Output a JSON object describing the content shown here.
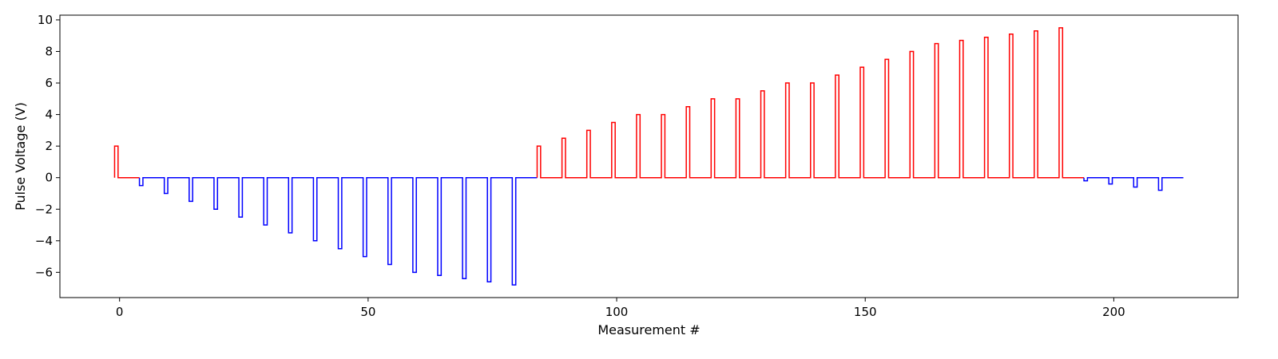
{
  "chart_data": {
    "type": "line",
    "title": "",
    "xlabel": "Measurement #",
    "ylabel": "Pulse Voltage (V)",
    "xlim": [
      -12,
      225
    ],
    "ylim": [
      -7.6,
      10.3
    ],
    "xticks": [
      0,
      50,
      100,
      150,
      200
    ],
    "yticks": [
      -6,
      -4,
      -2,
      0,
      2,
      4,
      6,
      8,
      10
    ],
    "xtick_labels": [
      "0",
      "50",
      "100",
      "150",
      "200"
    ],
    "ytick_labels": [
      "−6",
      "−4",
      "−2",
      "0",
      "2",
      "4",
      "6",
      "8",
      "10"
    ],
    "grid": false,
    "legend": "none",
    "step": true,
    "pulse_width": 0.7,
    "series": [
      {
        "color": "#ff0000",
        "segment": "first",
        "x_start": -1,
        "x_end": 4,
        "pulses": [
          {
            "x": -1,
            "v": 2.0
          }
        ]
      },
      {
        "color": "#0000ff",
        "segment": "negative",
        "x_start": 4,
        "x_end": 84,
        "pulses": [
          {
            "x": 4,
            "v": -0.5
          },
          {
            "x": 9,
            "v": -1.0
          },
          {
            "x": 14,
            "v": -1.5
          },
          {
            "x": 19,
            "v": -2.0
          },
          {
            "x": 24,
            "v": -2.5
          },
          {
            "x": 29,
            "v": -3.0
          },
          {
            "x": 34,
            "v": -3.5
          },
          {
            "x": 39,
            "v": -4.0
          },
          {
            "x": 44,
            "v": -4.5
          },
          {
            "x": 49,
            "v": -5.0
          },
          {
            "x": 54,
            "v": -5.5
          },
          {
            "x": 59,
            "v": -6.0
          },
          {
            "x": 64,
            "v": -6.2
          },
          {
            "x": 69,
            "v": -6.4
          },
          {
            "x": 74,
            "v": -6.6
          },
          {
            "x": 79,
            "v": -6.8
          }
        ]
      },
      {
        "color": "#ff0000",
        "segment": "positive",
        "x_start": 84,
        "x_end": 194,
        "pulses": [
          {
            "x": 84,
            "v": 2.0
          },
          {
            "x": 89,
            "v": 2.5
          },
          {
            "x": 94,
            "v": 3.0
          },
          {
            "x": 99,
            "v": 3.5
          },
          {
            "x": 104,
            "v": 4.0
          },
          {
            "x": 109,
            "v": 4.0
          },
          {
            "x": 114,
            "v": 4.5
          },
          {
            "x": 119,
            "v": 5.0
          },
          {
            "x": 124,
            "v": 5.0
          },
          {
            "x": 129,
            "v": 5.5
          },
          {
            "x": 134,
            "v": 6.0
          },
          {
            "x": 139,
            "v": 6.0
          },
          {
            "x": 144,
            "v": 6.5
          },
          {
            "x": 149,
            "v": 7.0
          },
          {
            "x": 154,
            "v": 7.5
          },
          {
            "x": 159,
            "v": 8.0
          },
          {
            "x": 164,
            "v": 8.5
          },
          {
            "x": 169,
            "v": 8.7
          },
          {
            "x": 174,
            "v": 8.9
          },
          {
            "x": 179,
            "v": 9.1
          },
          {
            "x": 184,
            "v": 9.3
          },
          {
            "x": 189,
            "v": 9.5
          }
        ]
      },
      {
        "color": "#0000ff",
        "segment": "final",
        "x_start": 194,
        "x_end": 214,
        "pulses": [
          {
            "x": 194,
            "v": -0.2
          },
          {
            "x": 199,
            "v": -0.4
          },
          {
            "x": 204,
            "v": -0.6
          },
          {
            "x": 209,
            "v": -0.8
          }
        ]
      }
    ]
  }
}
